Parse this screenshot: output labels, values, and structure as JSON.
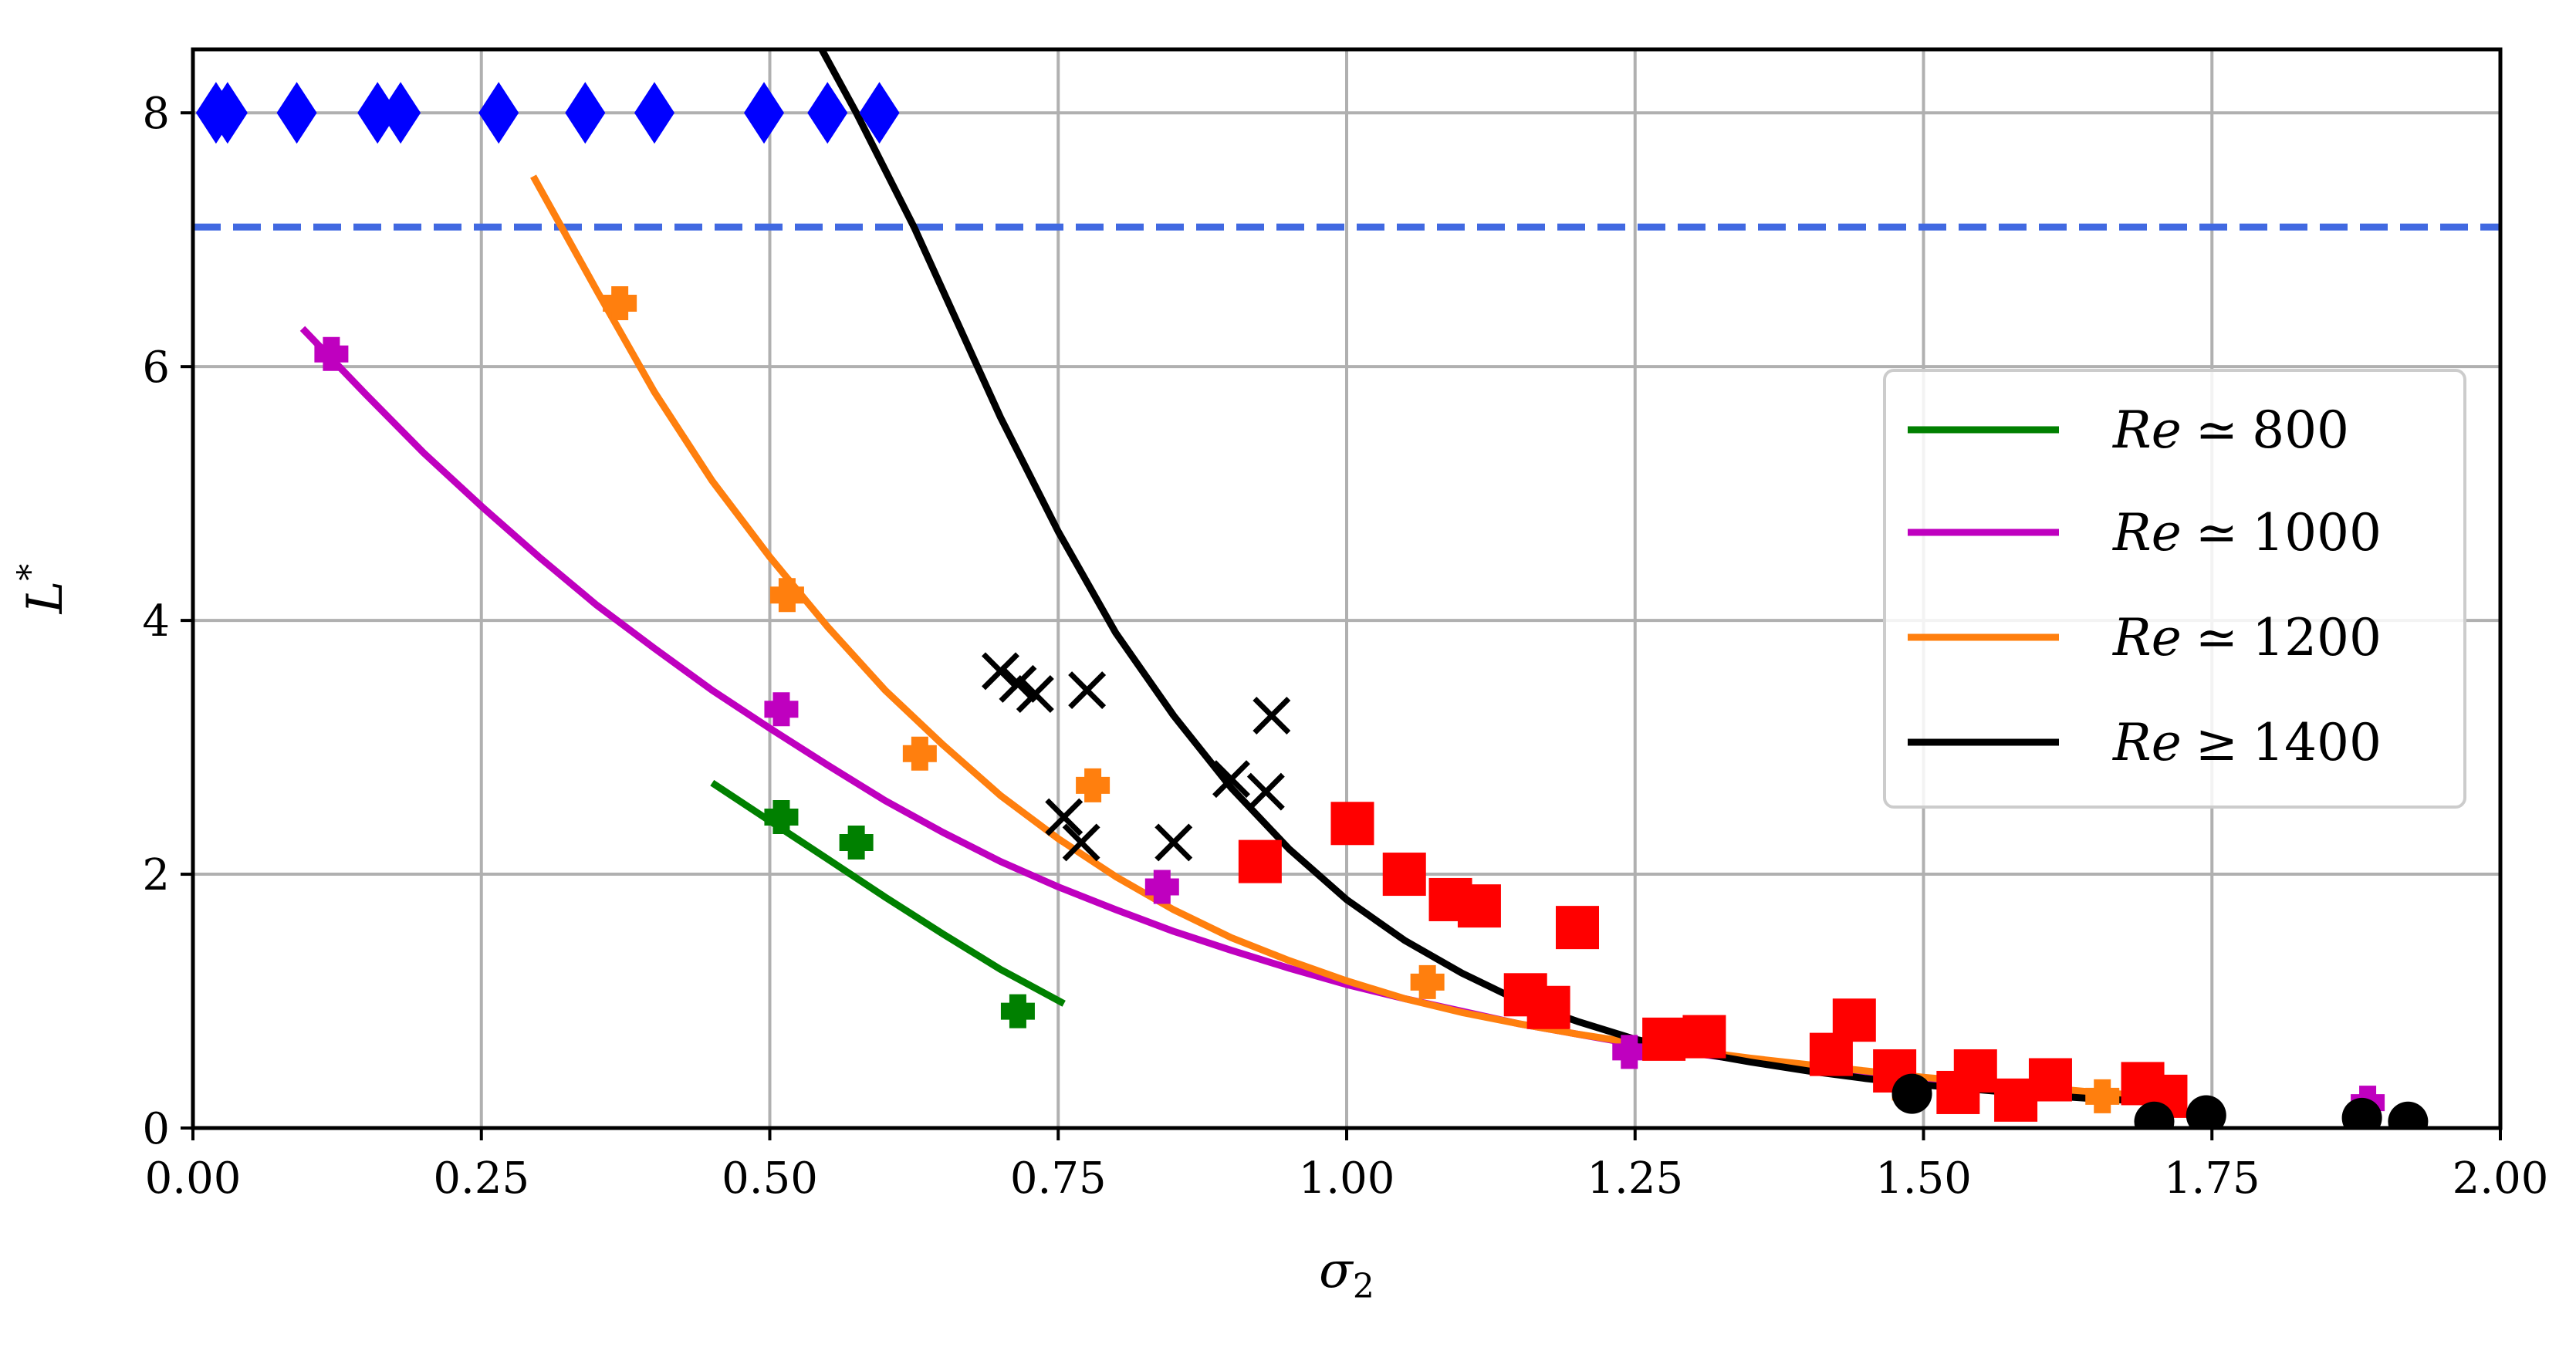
{
  "chart_data": {
    "type": "scatter",
    "title": "",
    "xlabel": "σ",
    "xlabel_sub": "2",
    "ylabel": "L",
    "ylabel_sup": "*",
    "xlim": [
      0,
      2
    ],
    "ylim": [
      0,
      8.5
    ],
    "xticks": [
      0.0,
      0.25,
      0.5,
      0.75,
      1.0,
      1.25,
      1.5,
      1.75,
      2.0
    ],
    "xtick_labels": [
      "0.00",
      "0.25",
      "0.50",
      "0.75",
      "1.00",
      "1.25",
      "1.50",
      "1.75",
      "2.00"
    ],
    "yticks": [
      0,
      2,
      4,
      6,
      8
    ],
    "ytick_labels": [
      "0",
      "2",
      "4",
      "6",
      "8"
    ],
    "grid": true,
    "legend_position": "right",
    "colors": {
      "green": "#008000",
      "magenta": "#bf00bf",
      "orange": "#ff7f0e",
      "black": "#000000",
      "red": "#ff0000",
      "blue": "#0000ff",
      "dashed": "#4169e1",
      "grid": "#b0b0b0"
    },
    "reference_line": {
      "y": 7.1,
      "style": "dashed",
      "color": "#4169e1"
    },
    "fit_curves": [
      {
        "name": "Re ≃ 800",
        "rel": "≃",
        "value": "800",
        "color": "#008000",
        "x": [
          0.45,
          0.5,
          0.55,
          0.6,
          0.65,
          0.7,
          0.755
        ],
        "y": [
          2.72,
          2.42,
          2.12,
          1.82,
          1.53,
          1.25,
          0.98
        ]
      },
      {
        "name": "Re ≃ 1000",
        "rel": "≃",
        "value": "1000",
        "color": "#bf00bf",
        "x": [
          0.095,
          0.15,
          0.2,
          0.25,
          0.3,
          0.35,
          0.4,
          0.45,
          0.5,
          0.55,
          0.6,
          0.65,
          0.7,
          0.75,
          0.8,
          0.85,
          0.9,
          0.95,
          1.0,
          1.05,
          1.1,
          1.15,
          1.2,
          1.25,
          1.3,
          1.35,
          1.4,
          1.45,
          1.5,
          1.55,
          1.6,
          1.65,
          1.7,
          1.72
        ],
        "y": [
          6.3,
          5.78,
          5.32,
          4.9,
          4.5,
          4.12,
          3.78,
          3.45,
          3.15,
          2.86,
          2.58,
          2.33,
          2.1,
          1.9,
          1.72,
          1.55,
          1.4,
          1.26,
          1.13,
          1.02,
          0.92,
          0.82,
          0.74,
          0.66,
          0.59,
          0.53,
          0.47,
          0.42,
          0.37,
          0.33,
          0.29,
          0.26,
          0.24,
          0.23
        ]
      },
      {
        "name": "Re ≃ 1200",
        "rel": "≃",
        "value": "1200",
        "color": "#ff7f0e",
        "x": [
          0.295,
          0.35,
          0.4,
          0.45,
          0.5,
          0.55,
          0.6,
          0.65,
          0.7,
          0.75,
          0.8,
          0.85,
          0.9,
          0.95,
          1.0,
          1.05,
          1.1,
          1.15,
          1.2,
          1.25,
          1.3,
          1.35,
          1.4,
          1.45,
          1.5,
          1.55,
          1.6,
          1.65,
          1.7,
          1.72
        ],
        "y": [
          7.5,
          6.6,
          5.8,
          5.1,
          4.5,
          3.95,
          3.45,
          3.02,
          2.62,
          2.28,
          1.98,
          1.72,
          1.5,
          1.32,
          1.16,
          1.02,
          0.91,
          0.82,
          0.74,
          0.67,
          0.61,
          0.55,
          0.5,
          0.45,
          0.4,
          0.36,
          0.32,
          0.28,
          0.25,
          0.24
        ]
      },
      {
        "name": "Re ≥ 1400",
        "rel": "≥",
        "value": "1400",
        "color": "#000000",
        "x": [
          0.545,
          0.575,
          0.6,
          0.625,
          0.65,
          0.7,
          0.75,
          0.8,
          0.85,
          0.9,
          0.95,
          1.0,
          1.05,
          1.1,
          1.15,
          1.2,
          1.25,
          1.3,
          1.35,
          1.4,
          1.45,
          1.5,
          1.55,
          1.6,
          1.65,
          1.7,
          1.72
        ],
        "y": [
          8.5,
          8.0,
          7.55,
          7.1,
          6.6,
          5.6,
          4.7,
          3.9,
          3.25,
          2.68,
          2.2,
          1.8,
          1.48,
          1.22,
          1.0,
          0.84,
          0.7,
          0.6,
          0.52,
          0.45,
          0.39,
          0.34,
          0.3,
          0.26,
          0.23,
          0.21,
          0.2
        ]
      }
    ],
    "points": [
      {
        "marker": "plus",
        "color": "#008000",
        "x": [
          0.51,
          0.575,
          0.715
        ],
        "y": [
          2.45,
          2.25,
          0.92
        ]
      },
      {
        "marker": "plus",
        "color": "#bf00bf",
        "x": [
          0.12,
          0.51,
          0.84,
          1.245,
          1.885
        ],
        "y": [
          6.1,
          3.3,
          1.9,
          0.6,
          0.2
        ]
      },
      {
        "marker": "plus",
        "color": "#ff7f0e",
        "x": [
          0.37,
          0.515,
          0.63,
          0.78,
          1.07,
          1.48,
          1.655
        ],
        "y": [
          6.5,
          4.2,
          2.95,
          2.7,
          1.15,
          0.35,
          0.25
        ]
      },
      {
        "marker": "x",
        "color": "#000000",
        "x": [
          0.7,
          0.715,
          0.73,
          0.775,
          0.755,
          0.77,
          0.85,
          0.9,
          0.93,
          0.935
        ],
        "y": [
          3.6,
          3.5,
          3.42,
          3.45,
          2.45,
          2.25,
          2.25,
          2.75,
          2.65,
          3.25
        ]
      },
      {
        "marker": "square",
        "color": "#ff0000",
        "x": [
          0.925,
          1.005,
          1.05,
          1.09,
          1.115,
          1.2,
          1.155,
          1.175,
          1.275,
          1.31,
          1.42,
          1.44,
          1.475,
          1.53,
          1.545,
          1.58,
          1.61,
          1.69,
          1.71
        ],
        "y": [
          2.1,
          2.4,
          2.0,
          1.8,
          1.75,
          1.58,
          1.05,
          0.95,
          0.7,
          0.72,
          0.58,
          0.85,
          0.45,
          0.28,
          0.45,
          0.22,
          0.38,
          0.35,
          0.25
        ]
      },
      {
        "marker": "circle",
        "color": "#000000",
        "x": [
          1.49,
          1.7,
          1.745,
          1.88,
          1.92
        ],
        "y": [
          0.27,
          0.05,
          0.1,
          0.08,
          0.05
        ]
      },
      {
        "marker": "diamond",
        "color": "#0000ff",
        "x": [
          0.02,
          0.03,
          0.09,
          0.16,
          0.18,
          0.265,
          0.34,
          0.4,
          0.495,
          0.55,
          0.595
        ],
        "y": [
          8,
          8,
          8,
          8,
          8,
          8,
          8,
          8,
          8,
          8,
          8
        ]
      }
    ],
    "legend": [
      {
        "label": "Re",
        "rel": "≃",
        "value": "800",
        "color": "#008000"
      },
      {
        "label": "Re",
        "rel": "≃",
        "value": "1000",
        "color": "#bf00bf"
      },
      {
        "label": "Re",
        "rel": "≃",
        "value": "1200",
        "color": "#ff7f0e"
      },
      {
        "label": "Re",
        "rel": "≥",
        "value": "1400",
        "color": "#000000"
      }
    ]
  }
}
